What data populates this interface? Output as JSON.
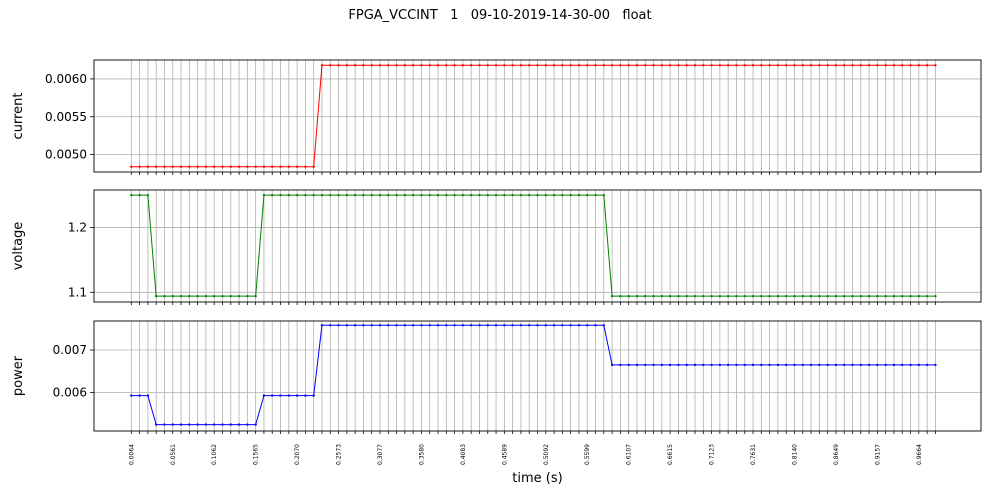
{
  "title": "FPGA_VCCINT   1   09-10-2019-14-30-00   float",
  "chart_data": {
    "type": "line",
    "title": "FPGA_VCCINT   1   09-10-2019-14-30-00   float",
    "xlabel": "time (s)",
    "n_points": 98,
    "xlim_index": [
      -4.5,
      102.5
    ],
    "x_tick_labels": [
      "0.0064",
      "0.0561",
      "0.1062",
      "0.1565",
      "0.2070",
      "0.2573",
      "0.3077",
      "0.3580",
      "0.4083",
      "0.4589",
      "0.5092",
      "0.5599",
      "0.6107",
      "0.6615",
      "0.7123",
      "0.7631",
      "0.8140",
      "0.8649",
      "0.9157",
      "0.9664"
    ],
    "x_tick_label_every": 5,
    "grid": true,
    "series": [
      {
        "name": "current",
        "ylabel": "current",
        "color": "#ff0000",
        "ylim": [
          0.00477,
          0.00625
        ],
        "yticks": [
          0.005,
          0.0055,
          0.006
        ],
        "ytick_labels": [
          "0.0050",
          "0.0055",
          "0.0060"
        ],
        "segments": [
          {
            "count": 23,
            "value": 0.00484
          },
          {
            "count": 75,
            "value": 0.00618
          }
        ]
      },
      {
        "name": "voltage",
        "ylabel": "voltage",
        "color": "#008000",
        "ylim": [
          1.085,
          1.258
        ],
        "yticks": [
          1.1,
          1.2
        ],
        "ytick_labels": [
          "1.1",
          "1.2"
        ],
        "segments": [
          {
            "count": 3,
            "value": 1.25
          },
          {
            "count": 13,
            "value": 1.094
          },
          {
            "count": 42,
            "value": 1.25
          },
          {
            "count": 40,
            "value": 1.094
          }
        ]
      },
      {
        "name": "power",
        "ylabel": "power",
        "color": "#0000ff",
        "ylim": [
          0.0051,
          0.00768
        ],
        "yticks": [
          0.006,
          0.007
        ],
        "ytick_labels": [
          "0.006",
          "0.007"
        ],
        "segments": [
          {
            "count": 3,
            "value": 0.00593
          },
          {
            "count": 13,
            "value": 0.00525
          },
          {
            "count": 7,
            "value": 0.00593
          },
          {
            "count": 35,
            "value": 0.00758
          },
          {
            "count": 40,
            "value": 0.00665
          }
        ]
      }
    ]
  }
}
